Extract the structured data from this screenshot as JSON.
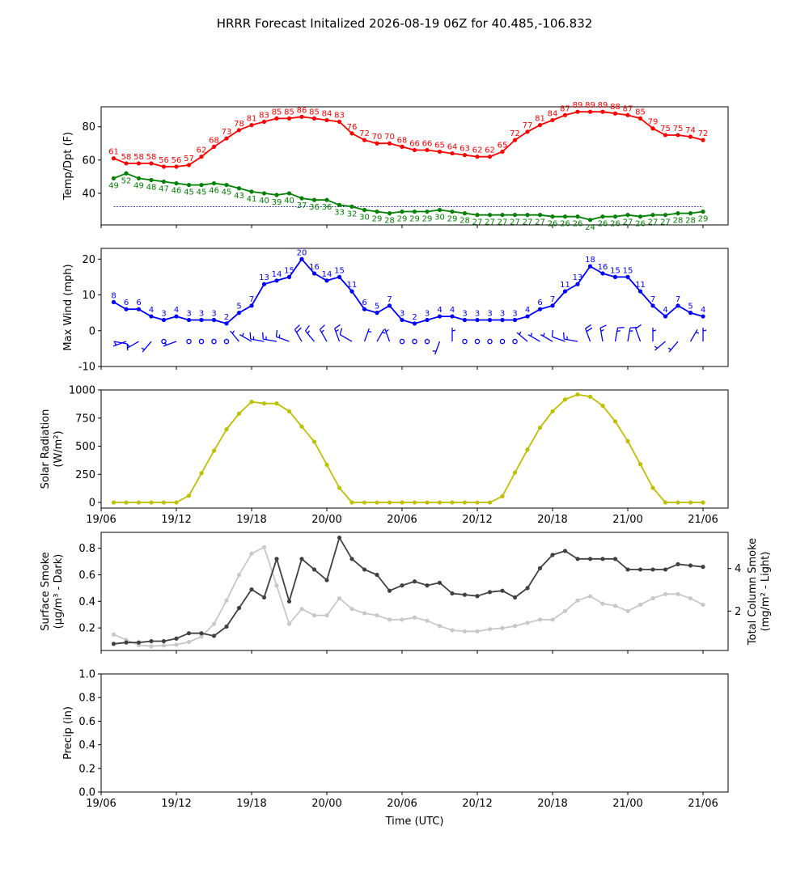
{
  "title": "HRRR Forecast Initalized 2026-08-19 06Z for 40.485,-106.832",
  "colors": {
    "temp": "#ff0000",
    "dewpoint": "#008000",
    "wind": "#0000ff",
    "solar": "#bfbf00",
    "smoke_surface": "#404040",
    "smoke_column": "#c8c8c8",
    "freezing_line": "#00008b",
    "axis": "#000000",
    "background": "#ffffff"
  },
  "chart_data": [
    {
      "type": "line",
      "panel": "temperature",
      "ylabel": "Temp/Dpt (F)",
      "ylim": [
        21,
        92
      ],
      "yticks": [
        40,
        60,
        80
      ],
      "xlim": [
        0,
        50
      ],
      "x_start": 1,
      "reference_line": 32,
      "series": [
        {
          "values": [
            61,
            58,
            58,
            58,
            56,
            56,
            57,
            62,
            68,
            73,
            78,
            81,
            83,
            85,
            85,
            86,
            85,
            84,
            83,
            76,
            72,
            70,
            70,
            68,
            66,
            66,
            65,
            64,
            63,
            62,
            62,
            65,
            72,
            77,
            81,
            84,
            87,
            89,
            89,
            89,
            88,
            87,
            85,
            79,
            75,
            75,
            74,
            72
          ]
        },
        {
          "values": [
            49,
            52,
            49,
            48,
            47,
            46,
            45,
            45,
            46,
            45,
            43,
            41,
            40,
            39,
            40,
            37,
            36,
            36,
            33,
            32,
            30,
            29,
            28,
            29,
            29,
            29,
            30,
            29,
            28,
            27,
            27,
            27,
            27,
            27,
            27,
            26,
            26,
            26,
            24,
            26,
            26,
            27,
            26,
            27,
            27,
            28,
            28,
            29
          ]
        }
      ]
    },
    {
      "type": "line",
      "panel": "wind",
      "ylabel": "Max Wind (mph)",
      "ylim": [
        -10,
        23
      ],
      "yticks": [
        -10,
        0,
        10,
        20
      ],
      "xlim": [
        0,
        50
      ],
      "x_start": 1,
      "series": [
        {
          "values": [
            8,
            6,
            6,
            4,
            3,
            4,
            3,
            3,
            3,
            2,
            5,
            7,
            13,
            14,
            15,
            20,
            16,
            14,
            15,
            11,
            6,
            5,
            7,
            3,
            2,
            3,
            4,
            4,
            3,
            3,
            3,
            3,
            3,
            4,
            6,
            7,
            11,
            13,
            18,
            16,
            15,
            15,
            11,
            7,
            4,
            7,
            5,
            4
          ]
        }
      ],
      "barb_directions_deg": [
        100,
        250,
        240,
        220,
        180,
        250,
        0,
        0,
        0,
        0,
        320,
        300,
        280,
        280,
        290,
        330,
        320,
        330,
        340,
        300,
        20,
        30,
        340,
        0,
        0,
        0,
        200,
        0,
        0,
        20,
        0,
        0,
        320,
        310,
        300,
        300,
        290,
        280,
        340,
        350,
        10,
        10,
        340,
        0,
        230,
        220,
        30,
        0
      ]
    },
    {
      "type": "line",
      "panel": "solar",
      "ylabel": "Solar Radiation",
      "ylabel_line2": "(W/m²)",
      "ylim": [
        -50,
        1000
      ],
      "yticks": [
        0,
        250,
        500,
        750,
        1000
      ],
      "xlim": [
        0,
        50
      ],
      "x_start": 1,
      "series": [
        {
          "values": [
            0,
            0,
            0,
            0,
            0,
            0,
            60,
            260,
            460,
            650,
            790,
            895,
            880,
            880,
            810,
            675,
            540,
            335,
            130,
            0,
            0,
            0,
            0,
            0,
            0,
            0,
            0,
            0,
            0,
            0,
            0,
            55,
            265,
            470,
            665,
            810,
            915,
            960,
            940,
            860,
            720,
            545,
            340,
            130,
            0,
            0,
            0,
            0
          ]
        }
      ]
    },
    {
      "type": "line",
      "panel": "smoke",
      "ylabel": "Surface Smoke",
      "ylabel_line2": "(µg/m³ - Dark)",
      "ylabel_right": "Total Column Smoke",
      "ylabel_right_line2": "(mg/m² - Light)",
      "ylim": [
        0.03,
        0.92
      ],
      "yticks": [
        0.2,
        0.4,
        0.6,
        0.8
      ],
      "ylim_right": [
        0.15,
        5.7
      ],
      "yticks_right": [
        2,
        4
      ],
      "xlim": [
        0,
        50
      ],
      "x_start": 1,
      "series": [
        {
          "axis": "left",
          "values": [
            0.08,
            0.09,
            0.09,
            0.1,
            0.1,
            0.12,
            0.16,
            0.16,
            0.14,
            0.21,
            0.35,
            0.49,
            0.43,
            0.72,
            0.4,
            0.72,
            0.64,
            0.56,
            0.88,
            0.72,
            0.64,
            0.6,
            0.48,
            0.52,
            0.55,
            0.52,
            0.54,
            0.46,
            0.45,
            0.44,
            0.47,
            0.48,
            0.43,
            0.5,
            0.65,
            0.75,
            0.78,
            0.72,
            0.72,
            0.72,
            0.72,
            0.64,
            0.64,
            0.64,
            0.64,
            0.68,
            0.67,
            0.66
          ]
        },
        {
          "axis": "right",
          "values": [
            0.9,
            0.65,
            0.4,
            0.35,
            0.38,
            0.42,
            0.55,
            0.8,
            1.4,
            2.5,
            3.7,
            4.7,
            5.0,
            3.2,
            1.4,
            2.1,
            1.8,
            1.8,
            2.6,
            2.1,
            1.9,
            1.8,
            1.6,
            1.6,
            1.7,
            1.55,
            1.3,
            1.1,
            1.05,
            1.05,
            1.15,
            1.2,
            1.3,
            1.45,
            1.6,
            1.6,
            2.0,
            2.5,
            2.7,
            2.35,
            2.25,
            2.0,
            2.3,
            2.6,
            2.8,
            2.8,
            2.6,
            2.3
          ]
        }
      ]
    },
    {
      "type": "line",
      "panel": "precip",
      "ylabel": "Precip (in)",
      "ylim": [
        0,
        1
      ],
      "yticks": [
        0.0,
        0.2,
        0.4,
        0.6,
        0.8,
        1.0
      ],
      "xlim": [
        0,
        50
      ],
      "xlabel": "Time (UTC)",
      "series": []
    }
  ],
  "x_axis": {
    "ticks": [
      0,
      6,
      12,
      18,
      24,
      30,
      36,
      42,
      48
    ],
    "tick_labels": [
      "19/06",
      "19/12",
      "19/18",
      "20/00",
      "20/06",
      "20/12",
      "20/18",
      "21/00",
      "21/06"
    ]
  }
}
